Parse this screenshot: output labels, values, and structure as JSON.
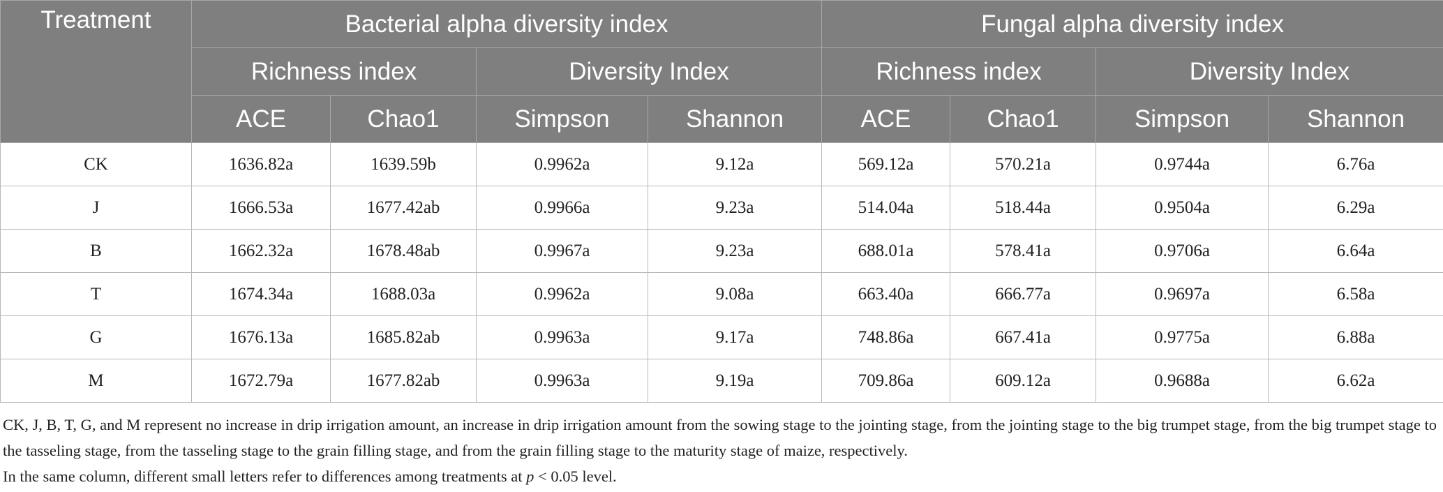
{
  "header": {
    "treatment": "Treatment",
    "bacterial": "Bacterial alpha diversity index",
    "fungal": "Fungal alpha diversity index",
    "richness": "Richness index",
    "diversity": "Diversity Index",
    "ace": "ACE",
    "chao1": "Chao1",
    "simpson": "Simpson",
    "shannon": "Shannon"
  },
  "rows": [
    {
      "treatment": "CK",
      "b_ace": "1636.82a",
      "b_chao1": "1639.59b",
      "b_simpson": "0.9962a",
      "b_shannon": "9.12a",
      "f_ace": "569.12a",
      "f_chao1": "570.21a",
      "f_simpson": "0.9744a",
      "f_shannon": "6.76a"
    },
    {
      "treatment": "J",
      "b_ace": "1666.53a",
      "b_chao1": "1677.42ab",
      "b_simpson": "0.9966a",
      "b_shannon": "9.23a",
      "f_ace": "514.04a",
      "f_chao1": "518.44a",
      "f_simpson": "0.9504a",
      "f_shannon": "6.29a"
    },
    {
      "treatment": "B",
      "b_ace": "1662.32a",
      "b_chao1": "1678.48ab",
      "b_simpson": "0.9967a",
      "b_shannon": "9.23a",
      "f_ace": "688.01a",
      "f_chao1": "578.41a",
      "f_simpson": "0.9706a",
      "f_shannon": "6.64a"
    },
    {
      "treatment": "T",
      "b_ace": "1674.34a",
      "b_chao1": "1688.03a",
      "b_simpson": "0.9962a",
      "b_shannon": "9.08a",
      "f_ace": "663.40a",
      "f_chao1": "666.77a",
      "f_simpson": "0.9697a",
      "f_shannon": "6.58a"
    },
    {
      "treatment": "G",
      "b_ace": "1676.13a",
      "b_chao1": "1685.82ab",
      "b_simpson": "0.9963a",
      "b_shannon": "9.17a",
      "f_ace": "748.86a",
      "f_chao1": "667.41a",
      "f_simpson": "0.9775a",
      "f_shannon": "6.88a"
    },
    {
      "treatment": "M",
      "b_ace": "1672.79a",
      "b_chao1": "1677.82ab",
      "b_simpson": "0.9963a",
      "b_shannon": "9.19a",
      "f_ace": "709.86a",
      "f_chao1": "609.12a",
      "f_simpson": "0.9688a",
      "f_shannon": "6.62a"
    }
  ],
  "footnote": {
    "line1": "CK, J, B, T, G, and M represent no increase in drip irrigation amount, an increase in drip irrigation amount from the sowing stage to the jointing stage, from the jointing stage to the big trumpet stage, from the big trumpet stage to the tasseling stage, from the tasseling stage to the grain filling stage, and from the grain filling stage to the maturity stage of maize, respectively.",
    "line2_pre": "In the same column, different small letters refer to differences among treatments at ",
    "line2_p": "p",
    "line2_post": " < 0.05 level."
  }
}
